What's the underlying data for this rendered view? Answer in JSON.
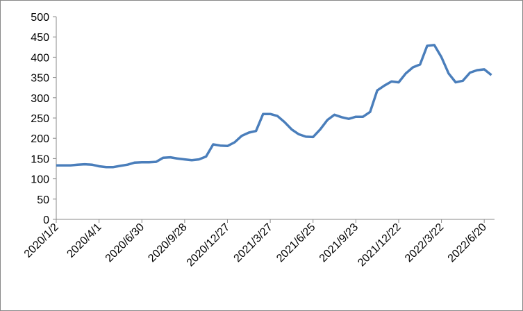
{
  "chart_data": {
    "type": "line",
    "categories": [
      "2020/1/2",
      null,
      null,
      null,
      null,
      null,
      "2020/4/1",
      null,
      null,
      null,
      null,
      null,
      "2020/6/30",
      null,
      null,
      null,
      null,
      null,
      "2020/9/28",
      null,
      null,
      null,
      null,
      null,
      "2020/12/27",
      null,
      null,
      null,
      null,
      null,
      "2021/3/27",
      null,
      null,
      null,
      null,
      null,
      "2021/6/25",
      null,
      null,
      null,
      null,
      null,
      "2021/9/23",
      null,
      null,
      null,
      null,
      null,
      "2021/12/22",
      null,
      null,
      null,
      null,
      null,
      "2022/3/22",
      null,
      null,
      null,
      null,
      null,
      "2022/6/20",
      null
    ],
    "values": [
      133,
      133,
      133,
      135,
      136,
      135,
      131,
      129,
      129,
      132,
      135,
      140,
      141,
      141,
      142,
      152,
      153,
      150,
      148,
      146,
      148,
      155,
      185,
      182,
      181,
      190,
      206,
      214,
      218,
      260,
      260,
      255,
      240,
      222,
      210,
      204,
      203,
      222,
      245,
      258,
      252,
      248,
      253,
      253,
      265,
      318,
      330,
      340,
      338,
      360,
      375,
      382,
      428,
      430,
      400,
      360,
      338,
      342,
      362,
      368,
      370,
      356
    ],
    "color": "#4a7ebb",
    "ylim": [
      0,
      500
    ],
    "yticks": [
      0,
      50,
      100,
      150,
      200,
      250,
      300,
      350,
      400,
      450,
      500
    ]
  }
}
